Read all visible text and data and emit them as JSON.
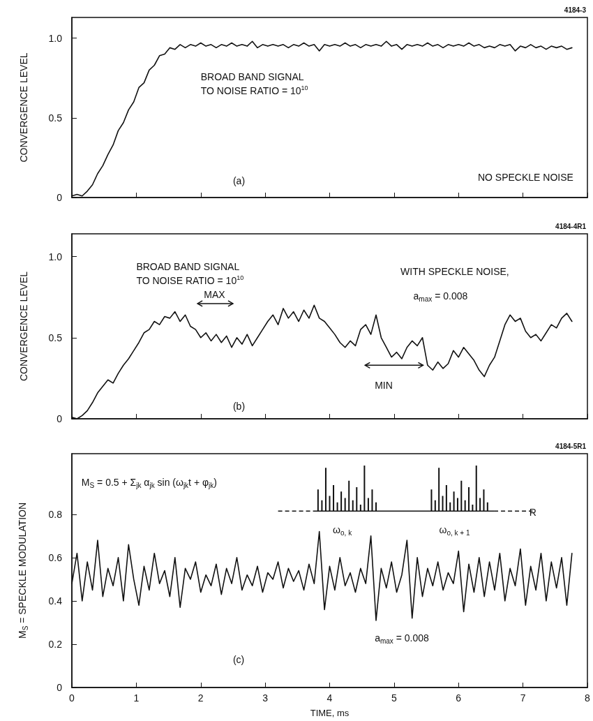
{
  "chart_data": [
    {
      "type": "line",
      "ylabel": "CONVERGENCE LEVEL",
      "xlim": [
        0,
        8
      ],
      "xticks": [
        0,
        1,
        2,
        3,
        4,
        5,
        6,
        7,
        8
      ],
      "ylim": [
        0,
        1.13
      ],
      "yticks": [
        0,
        0.5,
        {
          "value": 1,
          "label": "1.0"
        }
      ],
      "tick_labels": "y",
      "grid": false,
      "legend": false,
      "marker": "none",
      "line_style": "solid",
      "annotations": [
        "4184-3",
        "BROAD BAND SIGNAL\nTO NOISE RATIO = 10$^{10}$",
        "(a)",
        "NO SPECKLE NOISE"
      ],
      "x": [
        0,
        0.08,
        0.16,
        0.24,
        0.32,
        0.4,
        0.48,
        0.56,
        0.64,
        0.72,
        0.8,
        0.88,
        0.96,
        1.04,
        1.12,
        1.2,
        1.28,
        1.36,
        1.44,
        1.52,
        1.6,
        1.68,
        1.76,
        1.84,
        1.92,
        2,
        2.08,
        2.16,
        2.24,
        2.32,
        2.4,
        2.48,
        2.56,
        2.64,
        2.72,
        2.8,
        2.88,
        2.96,
        3.04,
        3.12,
        3.2,
        3.28,
        3.36,
        3.44,
        3.52,
        3.6,
        3.68,
        3.76,
        3.84,
        3.92,
        4,
        4.08,
        4.16,
        4.24,
        4.32,
        4.4,
        4.48,
        4.56,
        4.64,
        4.72,
        4.8,
        4.88,
        4.96,
        5.04,
        5.12,
        5.2,
        5.28,
        5.36,
        5.44,
        5.52,
        5.6,
        5.68,
        5.76,
        5.84,
        5.92,
        6,
        6.08,
        6.16,
        6.24,
        6.32,
        6.4,
        6.48,
        6.56,
        6.64,
        6.72,
        6.8,
        6.88,
        6.96,
        7.04,
        7.12,
        7.2,
        7.28,
        7.36,
        7.44,
        7.52,
        7.6,
        7.68,
        7.76
      ],
      "series": [
        {
          "color": "#111111",
          "values": [
            0.01,
            0.02,
            0.01,
            0.04,
            0.08,
            0.15,
            0.2,
            0.27,
            0.33,
            0.42,
            0.47,
            0.55,
            0.6,
            0.69,
            0.72,
            0.8,
            0.83,
            0.89,
            0.9,
            0.94,
            0.93,
            0.96,
            0.94,
            0.96,
            0.95,
            0.97,
            0.95,
            0.96,
            0.94,
            0.96,
            0.95,
            0.97,
            0.95,
            0.96,
            0.95,
            0.98,
            0.94,
            0.96,
            0.95,
            0.96,
            0.95,
            0.96,
            0.94,
            0.96,
            0.95,
            0.97,
            0.95,
            0.96,
            0.92,
            0.96,
            0.95,
            0.96,
            0.95,
            0.97,
            0.95,
            0.96,
            0.94,
            0.96,
            0.95,
            0.96,
            0.95,
            0.98,
            0.95,
            0.96,
            0.93,
            0.96,
            0.95,
            0.96,
            0.95,
            0.97,
            0.95,
            0.96,
            0.94,
            0.96,
            0.95,
            0.96,
            0.95,
            0.97,
            0.95,
            0.96,
            0.94,
            0.95,
            0.94,
            0.96,
            0.95,
            0.96,
            0.92,
            0.95,
            0.94,
            0.96,
            0.94,
            0.95,
            0.93,
            0.95,
            0.94,
            0.95,
            0.93,
            0.94
          ]
        }
      ]
    },
    {
      "type": "line",
      "ylabel": "CONVERGENCE LEVEL",
      "xlim": [
        0,
        8
      ],
      "xticks": [
        0,
        1,
        2,
        3,
        4,
        5,
        6,
        7,
        8
      ],
      "ylim": [
        0,
        1.14
      ],
      "yticks": [
        0,
        0.5,
        {
          "value": 1,
          "label": "1.0"
        }
      ],
      "tick_labels": "y",
      "grid": false,
      "legend": false,
      "marker": "none",
      "line_style": "solid",
      "annotations": [
        "4184-4R1",
        "BROAD BAND SIGNAL\nTO NOISE RATIO = 10$^{10}$",
        "WITH SPECKLE NOISE,",
        "a$_{max}$ = 0.008",
        "MAX",
        "MIN",
        "(b)"
      ],
      "x": [
        0,
        0.08,
        0.16,
        0.24,
        0.32,
        0.4,
        0.48,
        0.56,
        0.64,
        0.72,
        0.8,
        0.88,
        0.96,
        1.04,
        1.12,
        1.2,
        1.28,
        1.36,
        1.44,
        1.52,
        1.6,
        1.68,
        1.76,
        1.84,
        1.92,
        2,
        2.08,
        2.16,
        2.24,
        2.32,
        2.4,
        2.48,
        2.56,
        2.64,
        2.72,
        2.8,
        2.88,
        2.96,
        3.04,
        3.12,
        3.2,
        3.28,
        3.36,
        3.44,
        3.52,
        3.6,
        3.68,
        3.76,
        3.84,
        3.92,
        4,
        4.08,
        4.16,
        4.24,
        4.32,
        4.4,
        4.48,
        4.56,
        4.64,
        4.72,
        4.8,
        4.88,
        4.96,
        5.04,
        5.12,
        5.2,
        5.28,
        5.36,
        5.44,
        5.52,
        5.6,
        5.68,
        5.76,
        5.84,
        5.92,
        6,
        6.08,
        6.16,
        6.24,
        6.32,
        6.4,
        6.48,
        6.56,
        6.64,
        6.72,
        6.8,
        6.88,
        6.96,
        7.04,
        7.12,
        7.2,
        7.28,
        7.36,
        7.44,
        7.52,
        7.6,
        7.68,
        7.76
      ],
      "series": [
        {
          "color": "#111111",
          "values": [
            0.01,
            0.0,
            0.02,
            0.05,
            0.1,
            0.16,
            0.2,
            0.24,
            0.22,
            0.28,
            0.33,
            0.37,
            0.42,
            0.47,
            0.53,
            0.55,
            0.6,
            0.58,
            0.63,
            0.62,
            0.66,
            0.6,
            0.64,
            0.57,
            0.55,
            0.5,
            0.53,
            0.48,
            0.52,
            0.47,
            0.51,
            0.44,
            0.5,
            0.46,
            0.52,
            0.45,
            0.5,
            0.55,
            0.6,
            0.64,
            0.58,
            0.68,
            0.62,
            0.66,
            0.6,
            0.67,
            0.62,
            0.7,
            0.62,
            0.6,
            0.56,
            0.52,
            0.47,
            0.44,
            0.48,
            0.45,
            0.55,
            0.58,
            0.52,
            0.64,
            0.5,
            0.44,
            0.38,
            0.41,
            0.37,
            0.44,
            0.48,
            0.45,
            0.5,
            0.33,
            0.3,
            0.35,
            0.31,
            0.34,
            0.42,
            0.38,
            0.44,
            0.4,
            0.36,
            0.3,
            0.26,
            0.33,
            0.38,
            0.48,
            0.58,
            0.64,
            0.6,
            0.62,
            0.54,
            0.5,
            0.52,
            0.48,
            0.53,
            0.58,
            0.56,
            0.62,
            0.65,
            0.6
          ]
        }
      ]
    },
    {
      "type": "line",
      "xlabel": "TIME, ms",
      "ylabel": "M$_{S}$ = SPECKLE MODULATION",
      "xlim": [
        0,
        8
      ],
      "xticks": [
        0,
        1,
        2,
        3,
        4,
        5,
        6,
        7,
        8
      ],
      "ylim": [
        0,
        1.08
      ],
      "yticks": [
        0,
        0.2,
        0.4,
        0.6,
        0.8
      ],
      "grid": false,
      "legend": false,
      "marker": "none",
      "line_style": "solid",
      "annotations": [
        "4184-5R1",
        "M$_{S}$ = 0.5 + Σ$_{jk}$ α$_{jk}$ sin (ω$_{jk}$t + φ$_{jk}$)",
        "ω$_{o, k}$",
        "ω$_{o, k + 1}$",
        "R",
        "a$_{max}$ = 0.008",
        "(c)"
      ],
      "x": [
        0,
        0.08,
        0.16,
        0.24,
        0.32,
        0.4,
        0.48,
        0.56,
        0.64,
        0.72,
        0.8,
        0.88,
        0.96,
        1.04,
        1.12,
        1.2,
        1.28,
        1.36,
        1.44,
        1.52,
        1.6,
        1.68,
        1.76,
        1.84,
        1.92,
        2,
        2.08,
        2.16,
        2.24,
        2.32,
        2.4,
        2.48,
        2.56,
        2.64,
        2.72,
        2.8,
        2.88,
        2.96,
        3.04,
        3.12,
        3.2,
        3.28,
        3.36,
        3.44,
        3.52,
        3.6,
        3.68,
        3.76,
        3.84,
        3.92,
        4,
        4.08,
        4.16,
        4.24,
        4.32,
        4.4,
        4.48,
        4.56,
        4.64,
        4.72,
        4.8,
        4.88,
        4.96,
        5.04,
        5.12,
        5.2,
        5.28,
        5.36,
        5.44,
        5.52,
        5.6,
        5.68,
        5.76,
        5.84,
        5.92,
        6,
        6.08,
        6.16,
        6.24,
        6.32,
        6.4,
        6.48,
        6.56,
        6.64,
        6.72,
        6.8,
        6.88,
        6.96,
        7.04,
        7.12,
        7.2,
        7.28,
        7.36,
        7.44,
        7.52,
        7.6,
        7.68,
        7.76
      ],
      "series": [
        {
          "color": "#111111",
          "values": [
            0.48,
            0.62,
            0.4,
            0.58,
            0.45,
            0.68,
            0.42,
            0.55,
            0.47,
            0.6,
            0.4,
            0.66,
            0.5,
            0.38,
            0.56,
            0.45,
            0.62,
            0.48,
            0.54,
            0.42,
            0.6,
            0.37,
            0.55,
            0.5,
            0.58,
            0.44,
            0.52,
            0.47,
            0.57,
            0.43,
            0.55,
            0.48,
            0.6,
            0.45,
            0.52,
            0.47,
            0.56,
            0.44,
            0.53,
            0.5,
            0.58,
            0.46,
            0.55,
            0.49,
            0.54,
            0.45,
            0.57,
            0.48,
            0.72,
            0.36,
            0.56,
            0.45,
            0.6,
            0.47,
            0.53,
            0.44,
            0.55,
            0.48,
            0.7,
            0.31,
            0.55,
            0.46,
            0.58,
            0.44,
            0.52,
            0.68,
            0.32,
            0.6,
            0.42,
            0.55,
            0.47,
            0.58,
            0.45,
            0.53,
            0.48,
            0.63,
            0.35,
            0.57,
            0.44,
            0.6,
            0.42,
            0.58,
            0.45,
            0.62,
            0.4,
            0.55,
            0.47,
            0.64,
            0.38,
            0.56,
            0.45,
            0.62,
            0.4,
            0.58,
            0.46,
            0.6,
            0.38,
            0.62
          ]
        }
      ]
    }
  ]
}
